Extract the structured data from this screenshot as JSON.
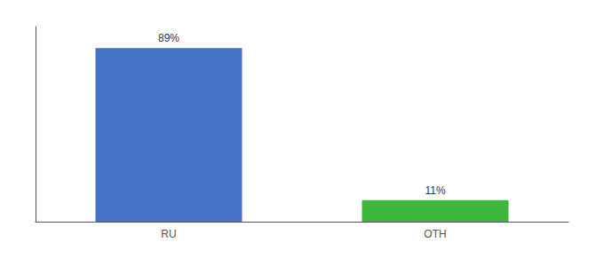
{
  "chart_data": {
    "type": "bar",
    "categories": [
      "RU",
      "OTH"
    ],
    "values": [
      89,
      11
    ],
    "value_labels": [
      "89%",
      "11%"
    ],
    "colors": [
      "#4472c4",
      "#3cb83c"
    ],
    "ylim": [
      0,
      100
    ],
    "grid": false,
    "data_labels": true,
    "tick_labels": "x"
  }
}
